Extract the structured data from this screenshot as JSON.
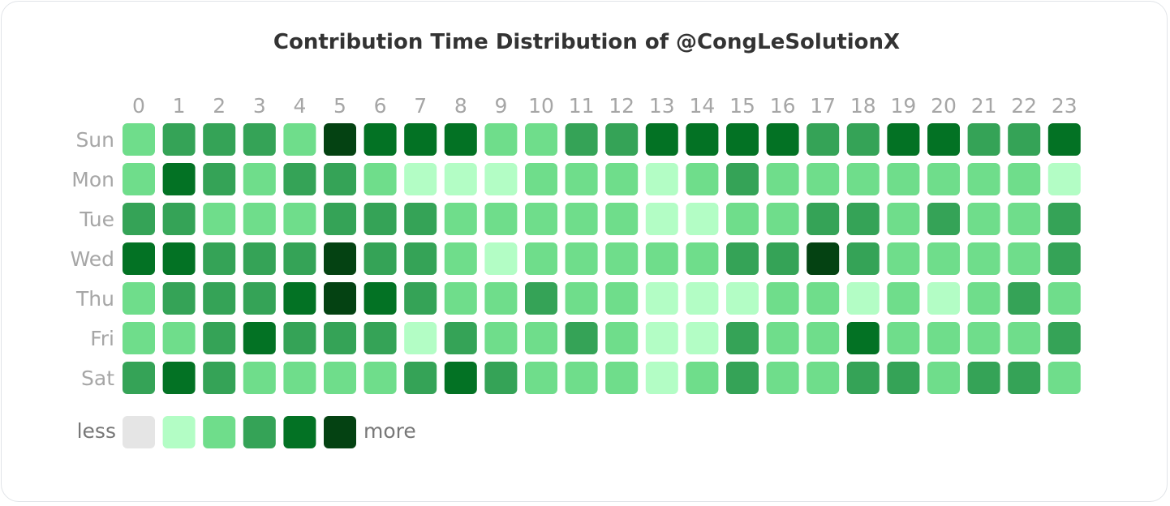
{
  "chart_data": {
    "type": "heatmap",
    "title": "Contribution Time Distribution of @CongLeSolutionX",
    "hours": [
      "0",
      "1",
      "2",
      "3",
      "4",
      "5",
      "6",
      "7",
      "8",
      "9",
      "10",
      "11",
      "12",
      "13",
      "14",
      "15",
      "16",
      "17",
      "18",
      "19",
      "20",
      "21",
      "22",
      "23"
    ],
    "days": [
      "Sun",
      "Mon",
      "Tue",
      "Wed",
      "Thu",
      "Fri",
      "Sat"
    ],
    "levels": [
      [
        2,
        3,
        3,
        3,
        2,
        5,
        4,
        4,
        4,
        2,
        2,
        3,
        3,
        4,
        4,
        4,
        4,
        3,
        3,
        4,
        4,
        3,
        3,
        4
      ],
      [
        2,
        4,
        3,
        2,
        3,
        3,
        2,
        1,
        1,
        1,
        2,
        2,
        2,
        1,
        2,
        3,
        2,
        2,
        2,
        2,
        2,
        2,
        2,
        1
      ],
      [
        3,
        3,
        2,
        2,
        2,
        3,
        3,
        3,
        2,
        2,
        2,
        2,
        2,
        1,
        1,
        2,
        2,
        3,
        3,
        2,
        3,
        2,
        2,
        3
      ],
      [
        4,
        4,
        3,
        3,
        3,
        5,
        3,
        3,
        2,
        1,
        2,
        2,
        2,
        2,
        2,
        3,
        3,
        5,
        3,
        2,
        2,
        2,
        2,
        3
      ],
      [
        2,
        3,
        3,
        3,
        4,
        5,
        4,
        3,
        2,
        2,
        3,
        2,
        2,
        1,
        1,
        1,
        2,
        2,
        1,
        2,
        1,
        2,
        3,
        2
      ],
      [
        2,
        2,
        3,
        4,
        3,
        3,
        3,
        1,
        3,
        2,
        2,
        3,
        2,
        1,
        1,
        3,
        2,
        2,
        4,
        2,
        2,
        2,
        2,
        3
      ],
      [
        3,
        4,
        3,
        2,
        2,
        2,
        2,
        3,
        4,
        3,
        2,
        2,
        2,
        1,
        2,
        3,
        2,
        2,
        3,
        3,
        2,
        3,
        3,
        2
      ]
    ],
    "level_colors": [
      "#e5e5e5",
      "#b3fdc5",
      "#6fdd8b",
      "#35a357",
      "#037224",
      "#044212"
    ],
    "legend": {
      "less": "less",
      "more": "more"
    }
  }
}
